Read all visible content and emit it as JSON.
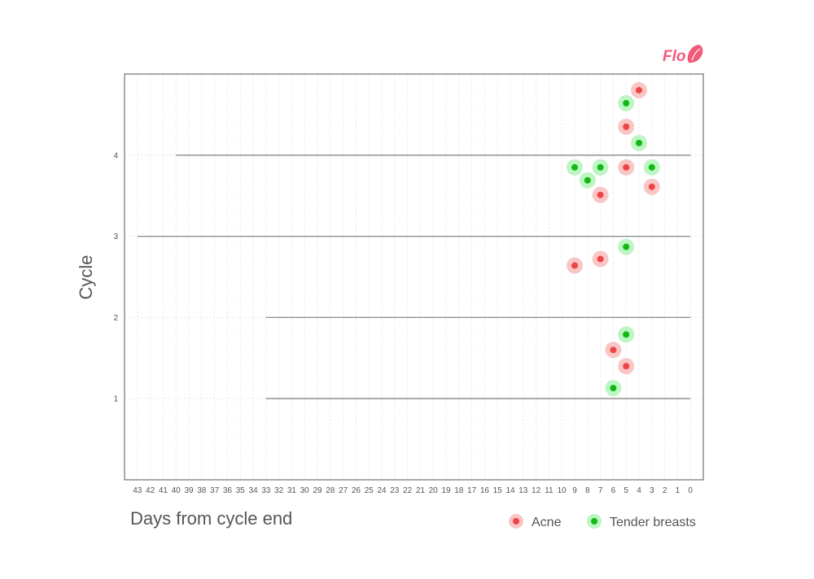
{
  "brand": {
    "name": "Flo",
    "icon": "flo-logo-icon",
    "color": "#f25a7a"
  },
  "chart_data": {
    "type": "scatter",
    "xlabel": "Days from cycle end",
    "ylabel": "Cycle",
    "x_ticks": [
      43,
      42,
      41,
      40,
      39,
      38,
      37,
      36,
      35,
      34,
      33,
      32,
      31,
      30,
      29,
      28,
      27,
      26,
      25,
      24,
      23,
      22,
      21,
      20,
      19,
      18,
      17,
      16,
      15,
      14,
      13,
      12,
      11,
      10,
      9,
      8,
      7,
      6,
      5,
      4,
      3,
      2,
      1,
      0
    ],
    "y_ticks": [
      1,
      2,
      3,
      4
    ],
    "xlim": [
      44,
      -1
    ],
    "ylim": [
      0,
      5
    ],
    "x_reversed": true,
    "grid": {
      "x_minor_dotted": true,
      "y_dotted": true
    },
    "cycle_lines": [
      {
        "cycle": 1,
        "length": 33
      },
      {
        "cycle": 2,
        "length": 33
      },
      {
        "cycle": 3,
        "length": 43
      },
      {
        "cycle": 4,
        "length": 40
      }
    ],
    "series": [
      {
        "name": "Acne",
        "color": "#ef4444",
        "halo": "#f9c6c6",
        "points": [
          {
            "x": 5,
            "y": 1.4
          },
          {
            "x": 6,
            "y": 1.6
          },
          {
            "x": 9,
            "y": 2.64
          },
          {
            "x": 7,
            "y": 2.72
          },
          {
            "x": 7,
            "y": 3.51
          },
          {
            "x": 3,
            "y": 3.61
          },
          {
            "x": 5,
            "y": 3.85
          },
          {
            "x": 5,
            "y": 4.35
          },
          {
            "x": 4,
            "y": 4.8
          }
        ]
      },
      {
        "name": "Tender breasts",
        "color": "#14b814",
        "halo": "#bdf5c3",
        "points": [
          {
            "x": 6,
            "y": 1.13
          },
          {
            "x": 5,
            "y": 1.79
          },
          {
            "x": 5,
            "y": 2.87
          },
          {
            "x": 8,
            "y": 3.69
          },
          {
            "x": 9,
            "y": 3.85
          },
          {
            "x": 7,
            "y": 3.85
          },
          {
            "x": 3,
            "y": 3.85
          },
          {
            "x": 4,
            "y": 4.15
          },
          {
            "x": 5,
            "y": 4.64
          }
        ]
      }
    ],
    "legend": {
      "position": "bottom-right"
    }
  }
}
